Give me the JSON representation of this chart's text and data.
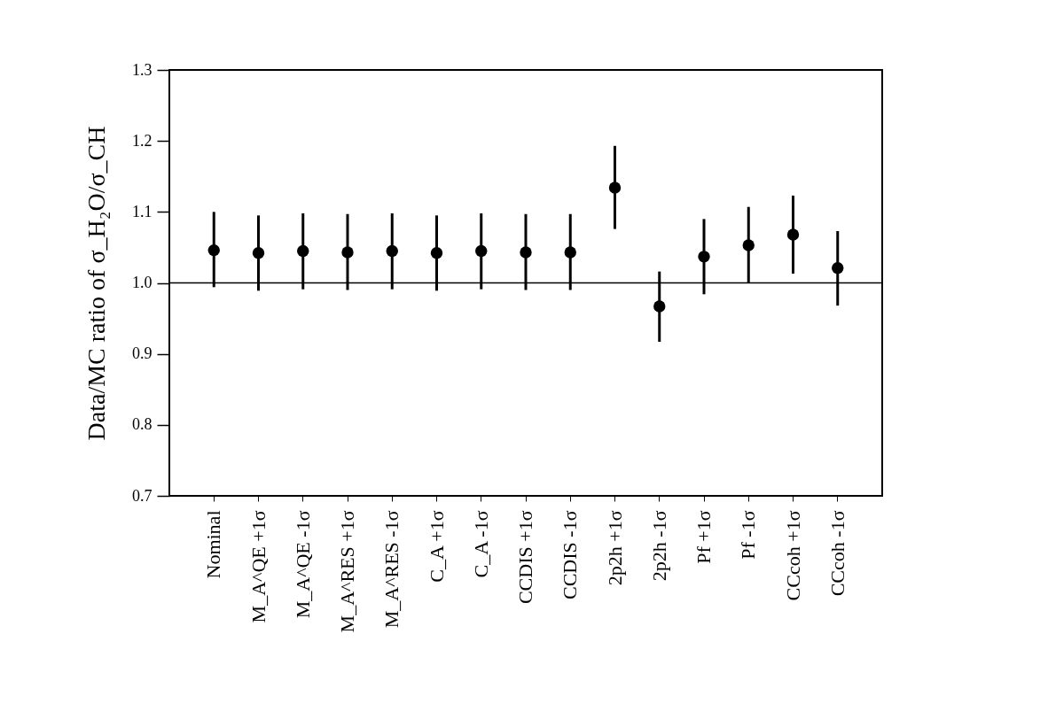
{
  "chart_data": {
    "type": "scatter",
    "ylabel": "Data/MC ratio of σ_H₂O/σ_CH",
    "categories": [
      "Nominal",
      "M_A^QE +1σ",
      "M_A^QE -1σ",
      "M_A^RES +1σ",
      "M_A^RES -1σ",
      "C_A +1σ",
      "C_A -1σ",
      "CCDIS +1σ",
      "CCDIS -1σ",
      "2p2h +1σ",
      "2p2h -1σ",
      "Pf +1σ",
      "Pf -1σ",
      "CCcoh +1σ",
      "CCcoh -1σ"
    ],
    "values": [
      1.046,
      1.042,
      1.045,
      1.043,
      1.045,
      1.042,
      1.045,
      1.043,
      1.043,
      1.134,
      0.967,
      1.037,
      1.053,
      1.068,
      1.021
    ],
    "errors": [
      [
        0.994,
        1.1
      ],
      [
        0.989,
        1.095
      ],
      [
        0.991,
        1.098
      ],
      [
        0.99,
        1.097
      ],
      [
        0.991,
        1.098
      ],
      [
        0.989,
        1.095
      ],
      [
        0.991,
        1.098
      ],
      [
        0.99,
        1.097
      ],
      [
        0.99,
        1.097
      ],
      [
        1.076,
        1.193
      ],
      [
        0.917,
        1.016
      ],
      [
        0.984,
        1.09
      ],
      [
        1.0,
        1.107
      ],
      [
        1.013,
        1.123
      ],
      [
        0.968,
        1.073
      ]
    ],
    "color": "#000000",
    "marker": "circle",
    "ylim": [
      0.7,
      1.3
    ],
    "yticks": [
      {
        "value": 0.7,
        "label": "0.7"
      },
      {
        "value": 0.8,
        "label": "0.8"
      },
      {
        "value": 0.9,
        "label": "0.9"
      },
      {
        "value": 1.0,
        "label": "1.0"
      },
      {
        "value": 1.1,
        "label": "1.1"
      },
      {
        "value": 1.2,
        "label": "1.2"
      },
      {
        "value": 1.3,
        "label": "1.3"
      }
    ],
    "ref_lines": [
      {
        "axis": "y",
        "value": 1.0,
        "color": "#000000"
      }
    ],
    "grid": false
  }
}
